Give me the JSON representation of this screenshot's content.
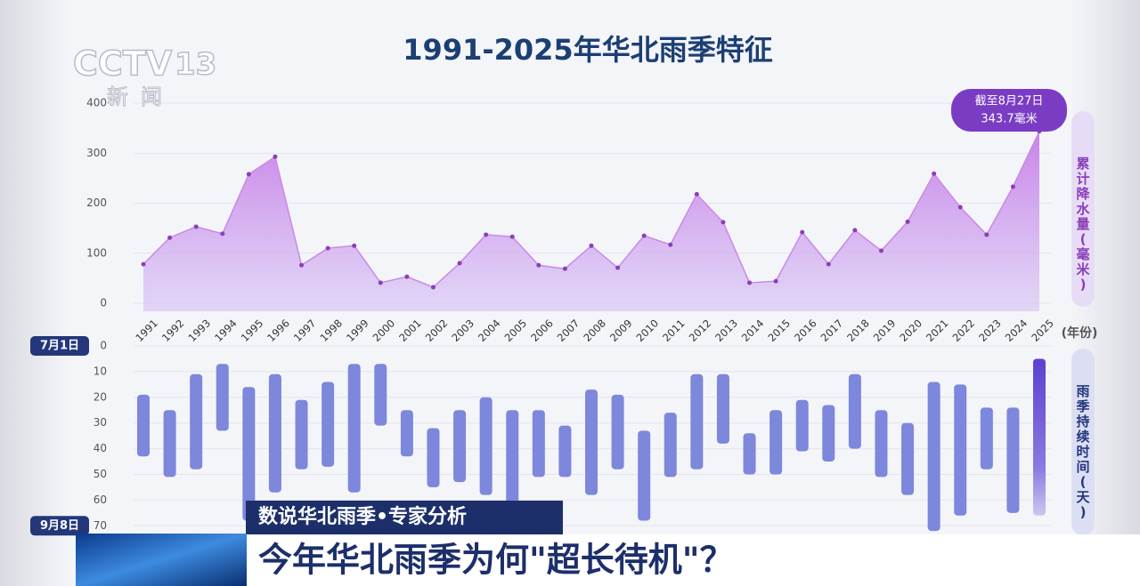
{
  "chart_data": [
    {
      "type": "area",
      "title": "1991-2025年华北雨季特征",
      "y_label": "累计降水量(毫米)",
      "x_label": "(年份)",
      "categories": [
        "1991",
        "1992",
        "1993",
        "1994",
        "1995",
        "1996",
        "1997",
        "1998",
        "1999",
        "2000",
        "2001",
        "2002",
        "2003",
        "2004",
        "2005",
        "2006",
        "2007",
        "2008",
        "2009",
        "2010",
        "2011",
        "2012",
        "2013",
        "2014",
        "2015",
        "2016",
        "2017",
        "2018",
        "2019",
        "2020",
        "2021",
        "2022",
        "2023",
        "2024",
        "2025"
      ],
      "values": [
        78,
        131,
        153,
        139,
        258,
        293,
        76,
        110,
        115,
        41,
        53,
        32,
        80,
        137,
        133,
        76,
        69,
        115,
        71,
        135,
        117,
        218,
        162,
        41,
        44,
        142,
        78,
        146,
        105,
        163,
        259,
        192,
        137,
        233,
        343.7
      ],
      "color": "#c77de8",
      "ylim": [
        0,
        400
      ],
      "yticks": [
        0,
        100,
        200,
        300,
        400
      ],
      "grid": true,
      "annotation": {
        "date": "截至8月27日",
        "value_label": "343.7毫米"
      }
    },
    {
      "type": "range-bar",
      "y_label": "雨季持续时间(天)",
      "start_label": "7月1日",
      "end_label": "9月8日",
      "starts": [
        19,
        25,
        11,
        7,
        16,
        11,
        21,
        14,
        7,
        7,
        25,
        32,
        25,
        20,
        25,
        25,
        31,
        17,
        19,
        33,
        26,
        11,
        11,
        34,
        25,
        21,
        23,
        11,
        25,
        30,
        14,
        15,
        24,
        24,
        5
      ],
      "ends": [
        43,
        51,
        48,
        33,
        68,
        57,
        48,
        47,
        57,
        31,
        43,
        55,
        53,
        58,
        69,
        51,
        51,
        58,
        48,
        68,
        51,
        48,
        38,
        50,
        50,
        41,
        45,
        40,
        51,
        58,
        72,
        66,
        48,
        65,
        66
      ],
      "color": "#7d87db",
      "ylim": [
        0,
        74
      ],
      "yticks": [
        0,
        10,
        20,
        30,
        40,
        50,
        60,
        70
      ],
      "reversed": true
    }
  ],
  "broadcast": {
    "channel": "CCTV",
    "channel_number": "13",
    "channel_name": "新闻",
    "segment": "数说华北雨季•专家分析",
    "headline": "今年华北雨季为何\"超长待机\"？"
  }
}
